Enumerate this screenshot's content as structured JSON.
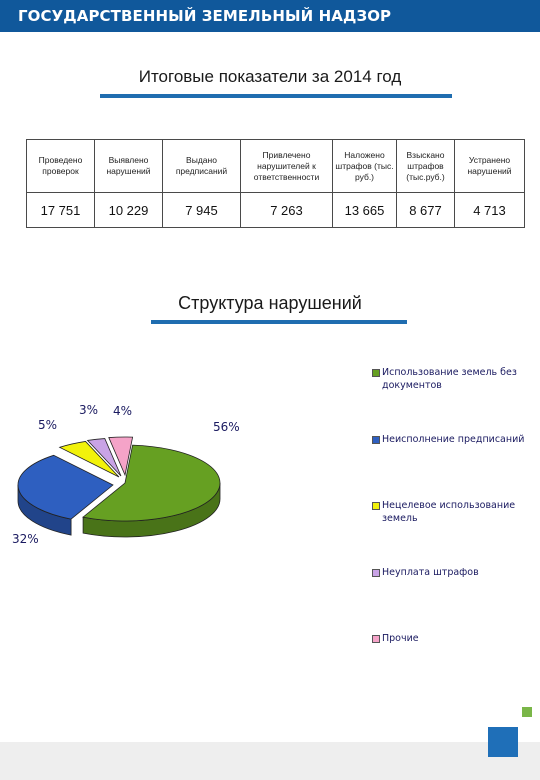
{
  "header": {
    "title": "ГОСУДАРСТВЕННЫЙ ЗЕМЕЛЬНЫЙ НАДЗОР"
  },
  "summary": {
    "title": "Итоговые показатели за 2014 год",
    "columns": [
      {
        "label": "Проведено проверок",
        "value": "17 751"
      },
      {
        "label": "Выявлено нарушений",
        "value": "10 229"
      },
      {
        "label": "Выдано предписаний",
        "value": "7 945"
      },
      {
        "label": "Привлечено нарушителей к ответственности",
        "value": "7 263"
      },
      {
        "label": "Наложено штрафов (тыс. руб.)",
        "value": "13 665"
      },
      {
        "label": "Взыскано штрафов (тыс.руб.)",
        "value": "8 677"
      },
      {
        "label": "Устранено нарушений",
        "value": "4 713"
      }
    ]
  },
  "chart_data": {
    "type": "pie",
    "title": "Структура нарушений",
    "slices": [
      {
        "label": "Использование земель без документов",
        "value": 56,
        "text": "56%",
        "color": "#66a022"
      },
      {
        "label": "Неисполнение предписаний",
        "value": 32,
        "text": "32%",
        "color": "#2e5fc0"
      },
      {
        "label": "Нецелевое использование земель",
        "value": 5,
        "text": "5%",
        "color": "#f2f20a"
      },
      {
        "label": "Неуплата штрафов",
        "value": 3,
        "text": "3%",
        "color": "#c9a3e6"
      },
      {
        "label": "Прочие",
        "value": 4,
        "text": "4%",
        "color": "#f5a3c8"
      }
    ],
    "legend_position": "right"
  }
}
